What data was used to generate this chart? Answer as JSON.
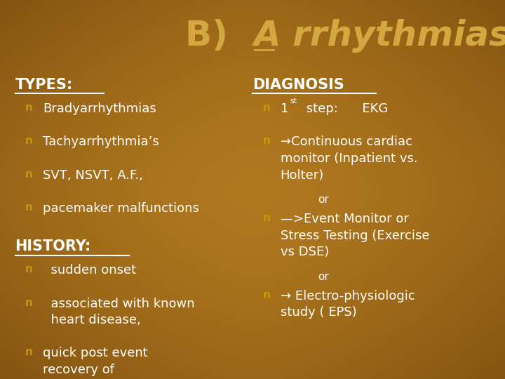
{
  "bg_color": "#b07820",
  "title_color": "#d4a840",
  "title_fontsize": 36,
  "text_color": "#ffffff",
  "heading_color": "#ffffff",
  "bullet_color": "#c8960a",
  "left_heading": "TYPES:",
  "left_bullets": [
    "Bradyarrhythmias",
    "Tachyarrhythmia’s",
    "SVT, NSVT, A.F.,",
    "pacemaker malfunctions"
  ],
  "left_heading2": "HISTORY:",
  "left_bullets2": [
    "  sudden onset",
    "  associated with known\n  heart disease,",
    "quick post event\nrecovery of\nconsciousness"
  ],
  "right_heading": "DIAGNOSIS",
  "right_bullet0_1": "1",
  "right_bullet0_sup": "st",
  "right_bullet0_rest": " step:      EKG",
  "right_bullets": [
    "→Continuous cardiac\nmonitor (Inpatient vs.\nHolter)",
    "—>Event Monitor or\nStress Testing (Exercise\nvs DSE)",
    "→ Electro-physiologic\nstudy ( EPS)"
  ],
  "fontsize_bullet": 13,
  "fontsize_heading": 15
}
